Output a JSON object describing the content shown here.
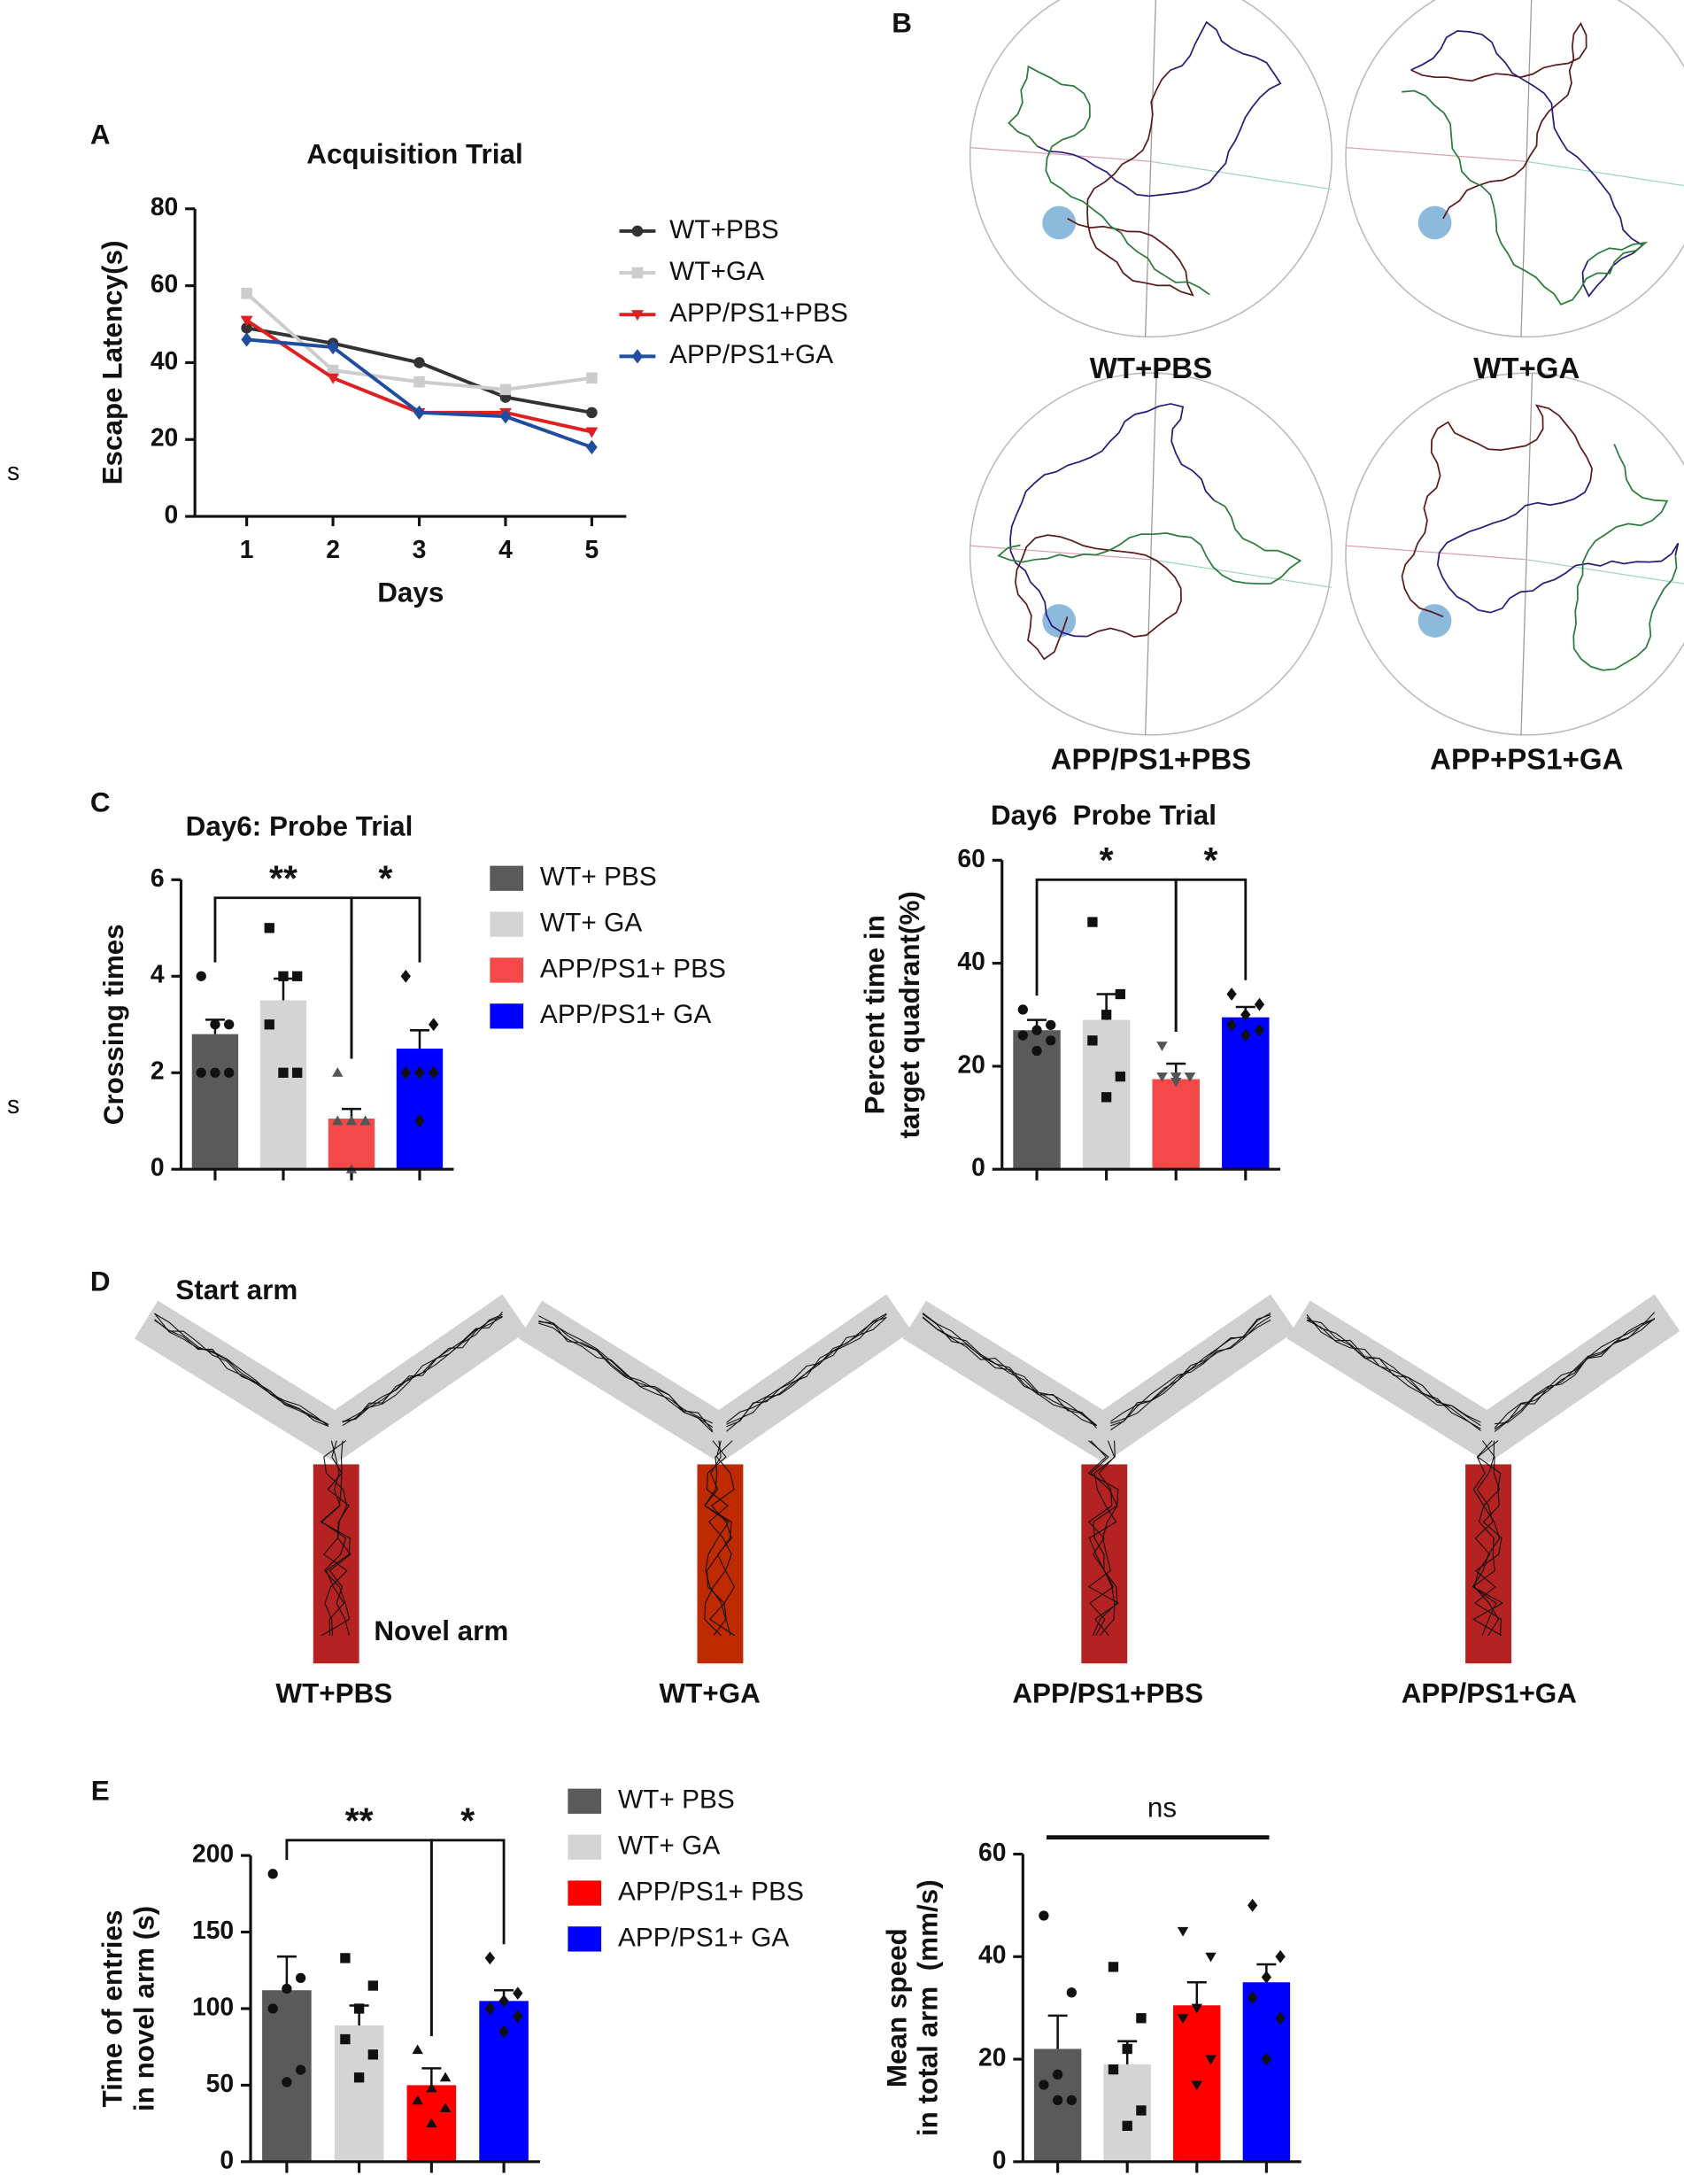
{
  "panel_labels": [
    "A",
    "B",
    "C",
    "D",
    "E"
  ],
  "margin_marks": [
    "s",
    "s"
  ],
  "water_maze": {
    "labels": [
      "WT+PBS",
      "WT+GA",
      "APP/PS1+PBS",
      "APP+PS1+GA"
    ]
  },
  "y_maze": {
    "labels": [
      "WT+PBS",
      "WT+GA",
      "APP/PS1+PBS",
      "APP/PS1+GA"
    ],
    "start_arm": "Start arm",
    "novel_arm": "Novel arm"
  },
  "chart_data": [
    {
      "type": "line",
      "title": "Acquisition Trial",
      "xlabel": "Days",
      "ylabel": [
        "Escape Latency(s)"
      ],
      "x": [
        1,
        2,
        3,
        4,
        5
      ],
      "xlim": [
        0.4,
        5.4
      ],
      "xticks": [
        1,
        2,
        3,
        4,
        5
      ],
      "ylim": [
        0,
        80
      ],
      "yticks": [
        0,
        20,
        40,
        60,
        80
      ],
      "series": [
        {
          "name": "WT+PBS",
          "color": "#333333",
          "marker": "circle",
          "values": [
            49,
            45,
            40,
            31,
            27
          ]
        },
        {
          "name": "WT+GA",
          "color": "#cccccc",
          "marker": "square",
          "values": [
            58,
            38,
            35,
            33,
            36
          ]
        },
        {
          "name": "APP/PS1+PBS",
          "color": "#e02020",
          "marker": "triangle",
          "values": [
            51,
            36,
            27,
            27,
            22
          ]
        },
        {
          "name": "APP/PS1+GA",
          "color": "#1f4ea0",
          "marker": "diamond",
          "values": [
            46,
            44,
            27,
            26,
            18
          ]
        }
      ]
    },
    {
      "type": "bar",
      "title": "Day6: Probe Trial",
      "ylabel": [
        "Crossing times"
      ],
      "legend_labels": [
        "WT+ PBS",
        "WT+ GA",
        "APP/PS1+ PBS",
        "APP/PS1+ GA"
      ],
      "colors": [
        "#5a5a5a",
        "#d4d4d4",
        "#f54848",
        "#0000ff"
      ],
      "values": [
        2.8,
        3.5,
        1.05,
        2.5
      ],
      "errors": [
        0.3,
        0.45,
        0.2,
        0.38
      ],
      "points": [
        [
          4,
          3,
          3,
          2,
          2,
          2
        ],
        [
          5,
          4,
          4,
          3,
          2,
          2
        ],
        [
          2,
          1,
          1,
          1,
          1,
          0
        ],
        [
          4,
          3,
          2,
          2,
          2,
          1
        ]
      ],
      "ylim": [
        0,
        6
      ],
      "yticks": [
        0,
        2,
        4,
        6
      ],
      "annotations": [
        {
          "text": "**",
          "from": 0,
          "to": 2,
          "style": "bracket"
        },
        {
          "text": "*",
          "from": 2,
          "to": 3,
          "style": "bracket"
        }
      ]
    },
    {
      "type": "bar",
      "title": "Day6  Probe Trial",
      "ylabel": [
        "Percent time in",
        "target quadrant(%)"
      ],
      "colors": [
        "#5a5a5a",
        "#d4d4d4",
        "#f54848",
        "#0000ff"
      ],
      "values": [
        27,
        29,
        17.5,
        29.5
      ],
      "errors": [
        2,
        5,
        3,
        2
      ],
      "points": [
        [
          31,
          28,
          27,
          26,
          25,
          23
        ],
        [
          48,
          34,
          30,
          25,
          18,
          14
        ],
        [
          24,
          18,
          18,
          18,
          18,
          17
        ],
        [
          34,
          32,
          30,
          28,
          27,
          26
        ]
      ],
      "ylim": [
        0,
        60
      ],
      "yticks": [
        0,
        20,
        40,
        60
      ],
      "annotations": [
        {
          "text": "*",
          "from": 0,
          "to": 2,
          "style": "bracket"
        },
        {
          "text": "*",
          "from": 2,
          "to": 3,
          "style": "bracket"
        }
      ]
    },
    {
      "type": "bar",
      "ylabel": [
        "Time of entries",
        "in novel arm (s)"
      ],
      "legend_labels": [
        "WT+ PBS",
        "WT+ GA",
        "APP/PS1+ PBS",
        "APP/PS1+ GA"
      ],
      "colors": [
        "#5a5a5a",
        "#d4d4d4",
        "#ff0000",
        "#0000ff"
      ],
      "values": [
        112,
        89,
        50,
        105
      ],
      "errors": [
        22,
        13,
        11,
        7
      ],
      "points": [
        [
          188,
          120,
          113,
          100,
          60,
          52
        ],
        [
          133,
          115,
          100,
          80,
          70,
          55
        ],
        [
          73,
          55,
          48,
          40,
          35,
          25
        ],
        [
          133,
          110,
          105,
          100,
          95,
          85
        ]
      ],
      "ylim": [
        0,
        200
      ],
      "yticks": [
        0,
        50,
        100,
        150,
        200
      ],
      "annotations": [
        {
          "text": "**",
          "from": 0,
          "to": 2,
          "style": "bracket"
        },
        {
          "text": "*",
          "from": 2,
          "to": 3,
          "style": "bracket"
        }
      ]
    },
    {
      "type": "bar",
      "ylabel": [
        "Mean speed",
        "in total arm  (mm/s)"
      ],
      "colors": [
        "#5a5a5a",
        "#d4d4d4",
        "#ff0000",
        "#0000ff"
      ],
      "values": [
        22,
        19,
        30.5,
        35
      ],
      "errors": [
        6.5,
        4.5,
        4.5,
        3.5
      ],
      "points": [
        [
          48,
          33,
          17,
          15,
          12,
          12
        ],
        [
          38,
          28,
          22,
          18,
          10,
          7
        ],
        [
          45,
          40,
          30,
          28,
          20,
          15
        ],
        [
          50,
          40,
          36,
          32,
          28,
          20
        ]
      ],
      "ylim": [
        0,
        60
      ],
      "yticks": [
        0,
        20,
        40,
        60
      ],
      "annotations": [
        {
          "text": "ns",
          "from": 0,
          "to": 3,
          "style": "line"
        }
      ]
    }
  ]
}
